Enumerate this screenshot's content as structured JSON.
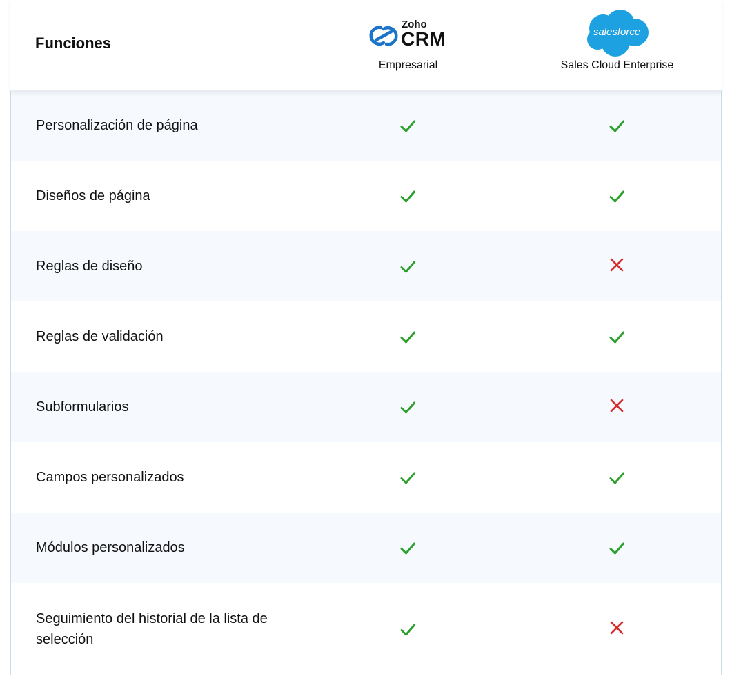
{
  "header": {
    "features_label": "Funciones",
    "products": [
      {
        "logo": "zoho-crm-logo",
        "logo_top": "Zoho",
        "logo_main": "CRM",
        "plan": "Empresarial"
      },
      {
        "logo": "salesforce-cloud-logo",
        "logo_text": "salesforce",
        "plan": "Sales Cloud Enterprise"
      }
    ]
  },
  "colors": {
    "check": "#2ca02c",
    "cross": "#d62b2b",
    "zoho_blue": "#1b74c9",
    "salesforce_blue": "#1da1e0",
    "grid": "#c9dde9",
    "alt_row": "#f6f9fd"
  },
  "rows": [
    {
      "feature": "Personalización de página",
      "zoho": "check-icon",
      "salesforce": "check-icon"
    },
    {
      "feature": "Diseños de página",
      "zoho": "check-icon",
      "salesforce": "check-icon"
    },
    {
      "feature": "Reglas de diseño",
      "zoho": "check-icon",
      "salesforce": "cross-icon"
    },
    {
      "feature": "Reglas de validación",
      "zoho": "check-icon",
      "salesforce": "check-icon"
    },
    {
      "feature": "Subformularios",
      "zoho": "check-icon",
      "salesforce": "cross-icon"
    },
    {
      "feature": "Campos personalizados",
      "zoho": "check-icon",
      "salesforce": "check-icon"
    },
    {
      "feature": "Módulos personalizados",
      "zoho": "check-icon",
      "salesforce": "check-icon"
    },
    {
      "feature": "Seguimiento del historial de la lista de selección",
      "zoho": "check-icon",
      "salesforce": "cross-icon"
    }
  ]
}
